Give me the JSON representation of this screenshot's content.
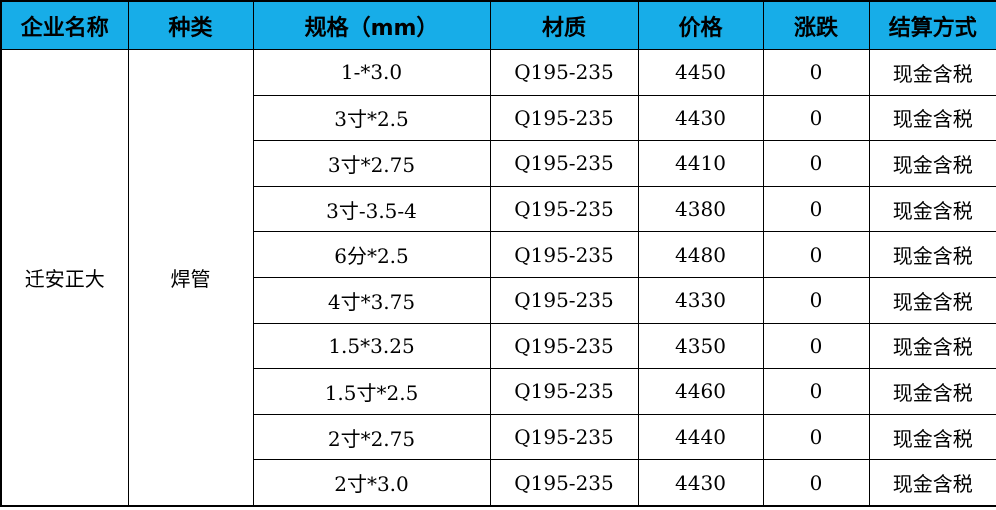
{
  "header_color": "#17ade8",
  "headers": [
    "企业名称",
    "种类",
    "规格（mm）",
    "材质",
    "价格",
    "涨跌",
    "结算方式"
  ],
  "company": "迁安正大",
  "category": "焊管",
  "rows": [
    {
      "spec": "1-*3.0",
      "material": "Q195-235",
      "price": "4450",
      "change": "0",
      "settlement": "现金含税"
    },
    {
      "spec": "3寸*2.5",
      "material": "Q195-235",
      "price": "4430",
      "change": "0",
      "settlement": "现金含税"
    },
    {
      "spec": "3寸*2.75",
      "material": "Q195-235",
      "price": "4410",
      "change": "0",
      "settlement": "现金含税"
    },
    {
      "spec": "3寸-3.5-4",
      "material": "Q195-235",
      "price": "4380",
      "change": "0",
      "settlement": "现金含税"
    },
    {
      "spec": "6分*2.5",
      "material": "Q195-235",
      "price": "4480",
      "change": "0",
      "settlement": "现金含税"
    },
    {
      "spec": "4寸*3.75",
      "material": "Q195-235",
      "price": "4330",
      "change": "0",
      "settlement": "现金含税"
    },
    {
      "spec": "1.5*3.25",
      "material": "Q195-235",
      "price": "4350",
      "change": "0",
      "settlement": "现金含税"
    },
    {
      "spec": "1.5寸*2.5",
      "material": "Q195-235",
      "price": "4460",
      "change": "0",
      "settlement": "现金含税"
    },
    {
      "spec": "2寸*2.75",
      "material": "Q195-235",
      "price": "4440",
      "change": "0",
      "settlement": "现金含税"
    },
    {
      "spec": "2寸*3.0",
      "material": "Q195-235",
      "price": "4430",
      "change": "0",
      "settlement": "现金含税"
    }
  ]
}
